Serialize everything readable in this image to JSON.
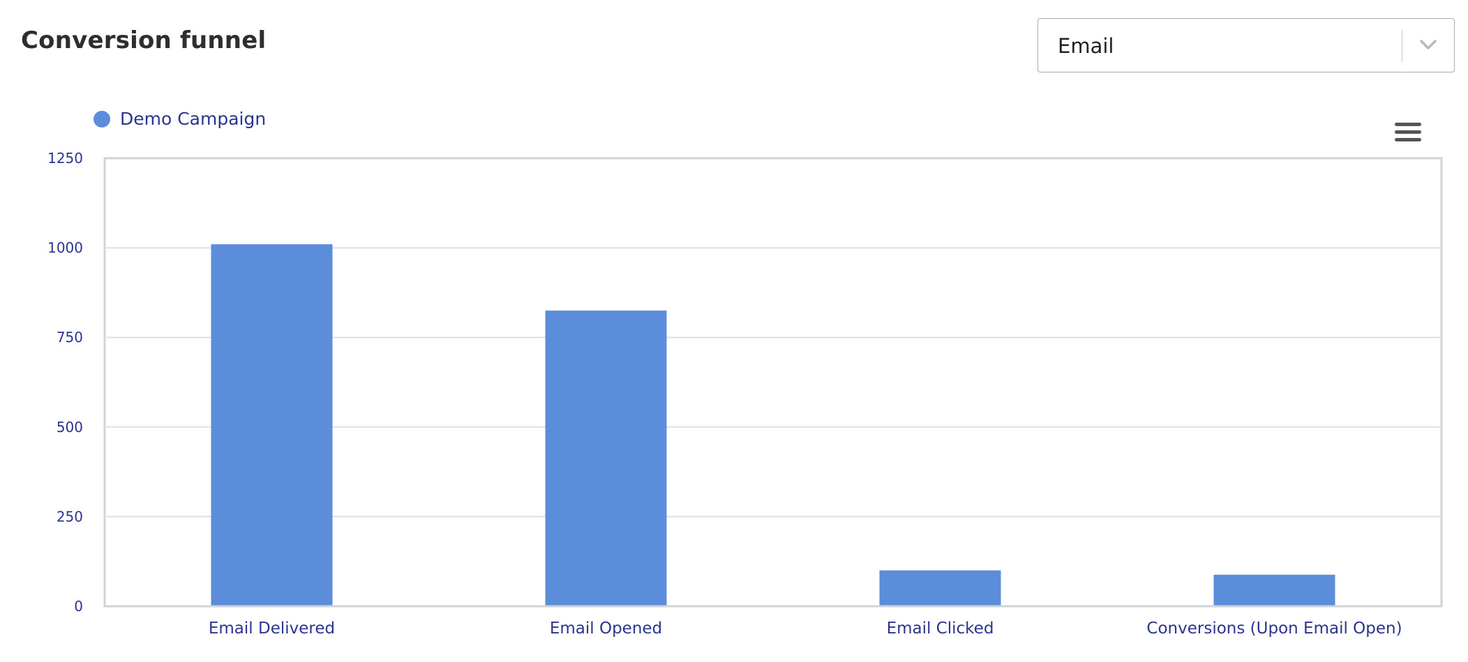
{
  "header": {
    "title": "Conversion funnel"
  },
  "channel_select": {
    "value": "Email"
  },
  "icons": {
    "dropdown": "chevron-down-icon",
    "chart_menu": "hamburger-menu-icon"
  },
  "colors": {
    "bar": "#5b8ddb",
    "text": "#2b3590",
    "grid": "#dde1e6",
    "plot_border": "#cfd4da"
  },
  "chart_data": {
    "type": "bar",
    "categories": [
      "Email Delivered",
      "Email Opened",
      "Email Clicked",
      "Conversions (Upon Email Open)"
    ],
    "series": [
      {
        "name": "Demo Campaign",
        "values": [
          1010,
          825,
          100,
          88
        ]
      }
    ],
    "y_ticks": [
      0,
      250,
      500,
      750,
      1000,
      1250
    ],
    "ylim": [
      0,
      1250
    ],
    "grid": true,
    "legend_position": "top-left"
  }
}
